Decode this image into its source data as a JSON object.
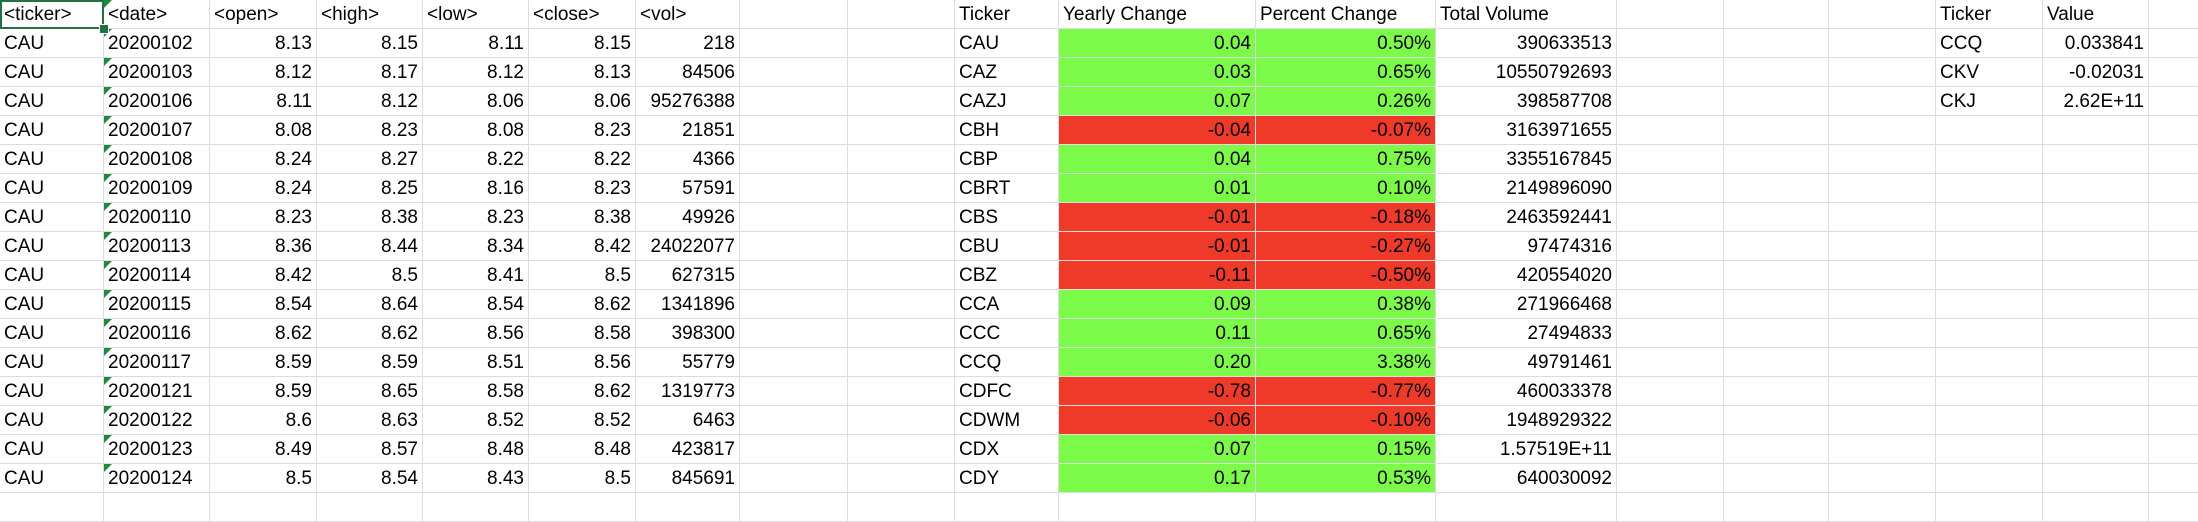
{
  "colors": {
    "positive_fill": "#7cfa4a",
    "negative_fill": "#ef3a2a",
    "gridline": "#dcdcdc",
    "selection": "#217346",
    "text_number_indicator": "#1e8a3a"
  },
  "selected_cell": "A1",
  "raw_headers": [
    "<ticker>",
    "<date>",
    "<open>",
    "<high>",
    "<low>",
    "<close>",
    "<vol>"
  ],
  "raw_rows": [
    [
      "CAU",
      "20200102",
      "8.13",
      "8.15",
      "8.11",
      "8.15",
      "218"
    ],
    [
      "CAU",
      "20200103",
      "8.12",
      "8.17",
      "8.12",
      "8.13",
      "84506"
    ],
    [
      "CAU",
      "20200106",
      "8.11",
      "8.12",
      "8.06",
      "8.06",
      "95276388"
    ],
    [
      "CAU",
      "20200107",
      "8.08",
      "8.23",
      "8.08",
      "8.23",
      "21851"
    ],
    [
      "CAU",
      "20200108",
      "8.24",
      "8.27",
      "8.22",
      "8.22",
      "4366"
    ],
    [
      "CAU",
      "20200109",
      "8.24",
      "8.25",
      "8.16",
      "8.23",
      "57591"
    ],
    [
      "CAU",
      "20200110",
      "8.23",
      "8.38",
      "8.23",
      "8.38",
      "49926"
    ],
    [
      "CAU",
      "20200113",
      "8.36",
      "8.44",
      "8.34",
      "8.42",
      "24022077"
    ],
    [
      "CAU",
      "20200114",
      "8.42",
      "8.5",
      "8.41",
      "8.5",
      "627315"
    ],
    [
      "CAU",
      "20200115",
      "8.54",
      "8.64",
      "8.54",
      "8.62",
      "1341896"
    ],
    [
      "CAU",
      "20200116",
      "8.62",
      "8.62",
      "8.56",
      "8.58",
      "398300"
    ],
    [
      "CAU",
      "20200117",
      "8.59",
      "8.59",
      "8.51",
      "8.56",
      "55779"
    ],
    [
      "CAU",
      "20200121",
      "8.59",
      "8.65",
      "8.58",
      "8.62",
      "1319773"
    ],
    [
      "CAU",
      "20200122",
      "8.6",
      "8.63",
      "8.52",
      "8.52",
      "6463"
    ],
    [
      "CAU",
      "20200123",
      "8.49",
      "8.57",
      "8.48",
      "8.48",
      "423817"
    ],
    [
      "CAU",
      "20200124",
      "8.5",
      "8.54",
      "8.43",
      "8.5",
      "845691"
    ]
  ],
  "summary_headers": [
    "Ticker",
    "Yearly Change",
    "Percent Change",
    "Total Volume"
  ],
  "summary_rows": [
    {
      "ticker": "CAU",
      "yearly": "0.04",
      "percent": "0.50%",
      "volume": "390633513",
      "sign": "pos"
    },
    {
      "ticker": "CAZ",
      "yearly": "0.03",
      "percent": "0.65%",
      "volume": "10550792693",
      "sign": "pos"
    },
    {
      "ticker": "CAZJ",
      "yearly": "0.07",
      "percent": "0.26%",
      "volume": "398587708",
      "sign": "pos"
    },
    {
      "ticker": "CBH",
      "yearly": "-0.04",
      "percent": "-0.07%",
      "volume": "3163971655",
      "sign": "neg"
    },
    {
      "ticker": "CBP",
      "yearly": "0.04",
      "percent": "0.75%",
      "volume": "3355167845",
      "sign": "pos"
    },
    {
      "ticker": "CBRT",
      "yearly": "0.01",
      "percent": "0.10%",
      "volume": "2149896090",
      "sign": "pos"
    },
    {
      "ticker": "CBS",
      "yearly": "-0.01",
      "percent": "-0.18%",
      "volume": "2463592441",
      "sign": "neg"
    },
    {
      "ticker": "CBU",
      "yearly": "-0.01",
      "percent": "-0.27%",
      "volume": "97474316",
      "sign": "neg"
    },
    {
      "ticker": "CBZ",
      "yearly": "-0.11",
      "percent": "-0.50%",
      "volume": "420554020",
      "sign": "neg"
    },
    {
      "ticker": "CCA",
      "yearly": "0.09",
      "percent": "0.38%",
      "volume": "271966468",
      "sign": "pos"
    },
    {
      "ticker": "CCC",
      "yearly": "0.11",
      "percent": "0.65%",
      "volume": "27494833",
      "sign": "pos"
    },
    {
      "ticker": "CCQ",
      "yearly": "0.20",
      "percent": "3.38%",
      "volume": "49791461",
      "sign": "pos"
    },
    {
      "ticker": "CDFC",
      "yearly": "-0.78",
      "percent": "-0.77%",
      "volume": "460033378",
      "sign": "neg"
    },
    {
      "ticker": "CDWM",
      "yearly": "-0.06",
      "percent": "-0.10%",
      "volume": "1948929322",
      "sign": "neg"
    },
    {
      "ticker": "CDX",
      "yearly": "0.07",
      "percent": "0.15%",
      "volume": "1.57519E+11",
      "sign": "pos"
    },
    {
      "ticker": "CDY",
      "yearly": "0.17",
      "percent": "0.53%",
      "volume": "640030092",
      "sign": "pos"
    }
  ],
  "greatest_headers": [
    "Ticker",
    "Value"
  ],
  "greatest_rows": [
    [
      "CCQ",
      "0.033841"
    ],
    [
      "CKV",
      "-0.02031"
    ],
    [
      "CKJ",
      "2.62E+11"
    ]
  ]
}
